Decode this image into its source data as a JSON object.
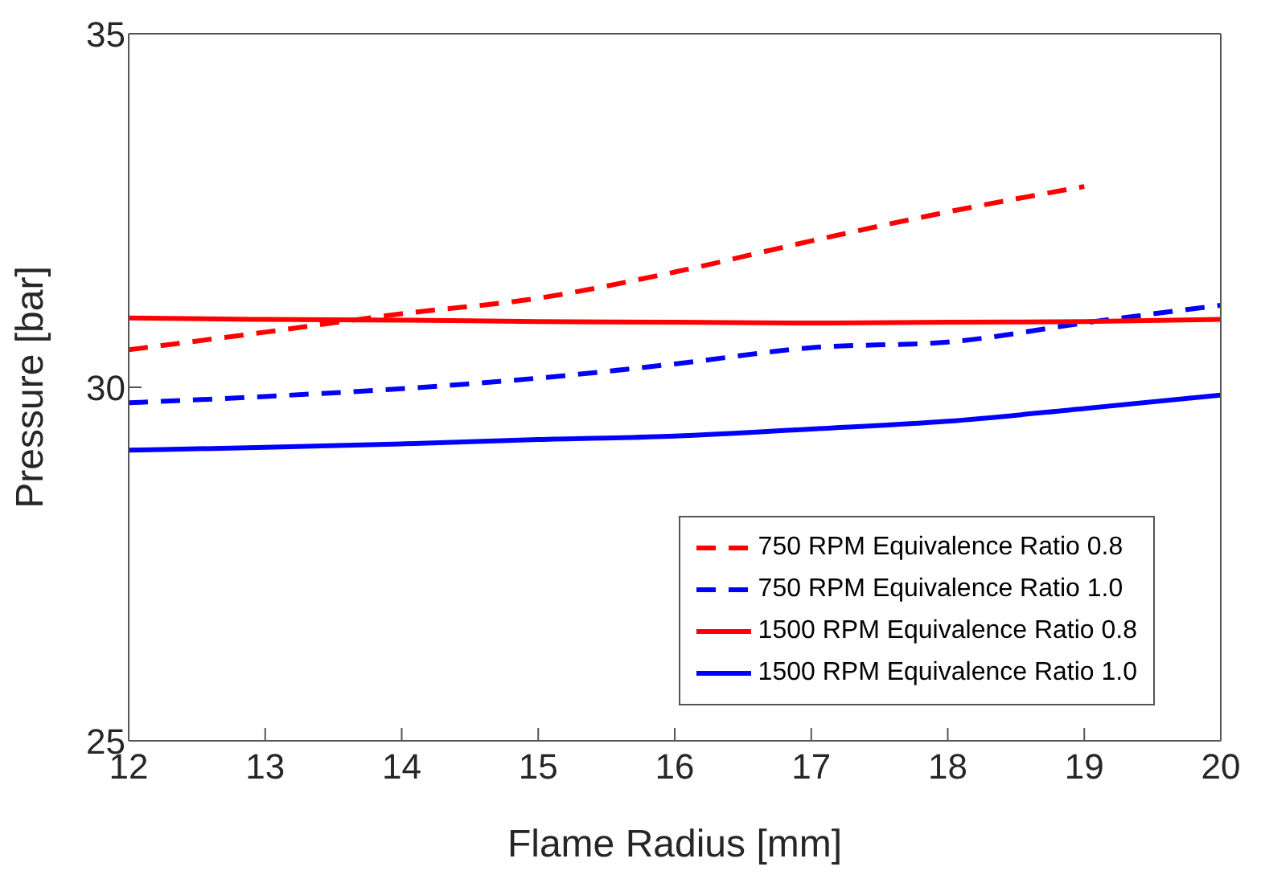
{
  "chart_data": {
    "type": "line",
    "xlabel": "Flame Radius [mm]",
    "ylabel": "Pressure [bar]",
    "xlim": [
      12,
      20
    ],
    "xticks": [
      12,
      13,
      14,
      15,
      16,
      17,
      18,
      19,
      20
    ],
    "ylim": [
      25,
      35
    ],
    "yticks": [
      25,
      30,
      35
    ],
    "grid": false,
    "legend": "bottom right",
    "marker": "none",
    "series": [
      {
        "name": "750 RPM Equivalence Ratio 0.8",
        "color": "#ff0000",
        "line_style": "dashed",
        "x": [
          12,
          13,
          14,
          15,
          16,
          17,
          18,
          19
        ],
        "values": [
          30.53,
          30.78,
          31.04,
          31.26,
          31.63,
          32.07,
          32.48,
          32.84
        ]
      },
      {
        "name": "750 RPM Equivalence Ratio 1.0",
        "color": "#0000ff",
        "line_style": "dashed",
        "x": [
          12,
          13,
          14,
          15,
          16,
          17,
          18,
          19,
          20
        ],
        "values": [
          29.78,
          29.87,
          29.98,
          30.13,
          30.33,
          30.56,
          30.64,
          30.91,
          31.16
        ]
      },
      {
        "name": "1500 RPM Equivalence Ratio 0.8",
        "color": "#ff0000",
        "line_style": "solid",
        "x": [
          12,
          13,
          14,
          15,
          16,
          17,
          18,
          19,
          20
        ],
        "values": [
          30.98,
          30.96,
          30.95,
          30.93,
          30.92,
          30.91,
          30.92,
          30.93,
          30.96
        ]
      },
      {
        "name": "1500 RPM Equivalence Ratio 1.0",
        "color": "#0000ff",
        "line_style": "solid",
        "x": [
          12,
          13,
          14,
          15,
          16,
          17,
          18,
          19,
          20
        ],
        "values": [
          29.11,
          29.15,
          29.2,
          29.26,
          29.31,
          29.41,
          29.52,
          29.7,
          29.89
        ]
      }
    ]
  }
}
